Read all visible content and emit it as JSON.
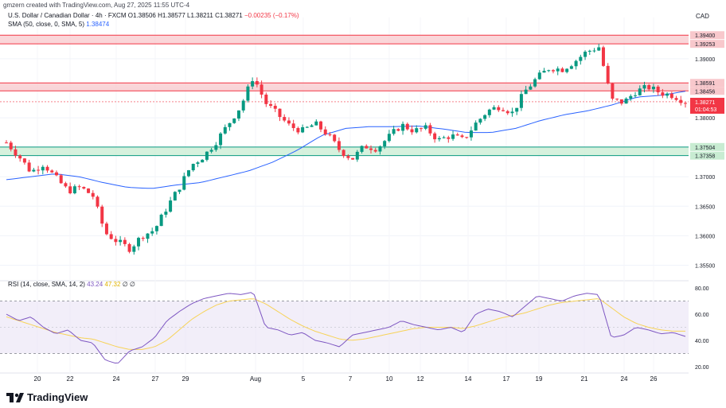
{
  "attribution": "gmzern created with TradingView.com, Aug 27, 2025 11:55 UTC-4",
  "legend": {
    "symbol": "U.S. Dollar / Canadian Dollar · 4h · FXCM",
    "open": "O1.38506",
    "high": "H1.38577",
    "low": "L1.38211",
    "close": "C1.38271",
    "change": "−0.00235 (−0.17%)",
    "sma_label": "SMA (50, close, 0, SMA, 5)",
    "sma_value": "1.38474"
  },
  "rsi_legend": {
    "label": "RSI (14, close, SMA, 14, 2)",
    "rsi_value": "43.24",
    "sma_value": "47.32",
    "extra": "∅ ∅"
  },
  "currency": "CAD",
  "brand": "TradingView",
  "colors": {
    "up": "#089981",
    "down": "#f23645",
    "sma": "#2962ff",
    "rsi": "#7e57c2",
    "rsi_ma": "#f7d358",
    "resistance_zone": "#f8c8cc",
    "support_zone": "#c8ecd2"
  },
  "chart_data": {
    "type": "candlestick",
    "title": "U.S. Dollar / Canadian Dollar · 4h · FXCM",
    "ylim": [
      1.3525,
      1.397
    ],
    "y_ticks": [
      1.355,
      1.36,
      1.365,
      1.37,
      1.375,
      1.38,
      1.385,
      1.39
    ],
    "y_tick_labels": [
      "1.35500",
      "1.36000",
      "1.36500",
      "1.37000",
      "1.37500",
      "1.38000",
      "1.38500",
      "1.39000"
    ],
    "x_labels": [
      "20",
      "22",
      "24",
      "27",
      "29",
      "Aug",
      "5",
      "7",
      "10",
      "12",
      "14",
      "17",
      "19",
      "21",
      "24",
      "26"
    ],
    "zones": [
      {
        "name": "resistance-upper",
        "from": 1.39253,
        "to": 1.394,
        "labels": [
          "1.39400",
          "1.39253"
        ]
      },
      {
        "name": "resistance-lower",
        "from": 1.38456,
        "to": 1.38591,
        "labels": [
          "1.38591",
          "1.38456"
        ]
      },
      {
        "name": "support",
        "from": 1.37358,
        "to": 1.37504,
        "labels": [
          "1.37504",
          "1.37358"
        ]
      }
    ],
    "last_price": {
      "value": 1.38271,
      "label": "1.38271",
      "countdown": "01:04:53"
    },
    "price_path": [
      1.3758,
      1.3735,
      1.3708,
      1.3722,
      1.3698,
      1.3676,
      1.3682,
      1.3668,
      1.3605,
      1.359,
      1.3578,
      1.36,
      1.361,
      1.3648,
      1.3682,
      1.372,
      1.3735,
      1.376,
      1.379,
      1.382,
      1.387,
      1.3825,
      1.3805,
      1.3785,
      1.3778,
      1.379,
      1.3772,
      1.3745,
      1.373,
      1.3752,
      1.3748,
      1.3768,
      1.3788,
      1.3778,
      1.3782,
      1.3762,
      1.377,
      1.3762,
      1.379,
      1.3812,
      1.382,
      1.3808,
      1.3845,
      1.3868,
      1.3885,
      1.3882,
      1.3895,
      1.3912,
      1.392,
      1.383,
      1.3826,
      1.3845,
      1.3852,
      1.3842,
      1.3838,
      1.3827
    ],
    "sma_path": [
      1.3695,
      1.37,
      1.3705,
      1.37,
      1.369,
      1.3682,
      1.368,
      1.3686,
      1.369,
      1.37,
      1.371,
      1.3725,
      1.3745,
      1.377,
      1.3782,
      1.3785,
      1.3785,
      1.3786,
      1.3781,
      1.3775,
      1.3775,
      1.3782,
      1.3795,
      1.3805,
      1.3812,
      1.3822,
      1.3835,
      1.3838,
      1.3845
    ],
    "rsi": {
      "ylim": [
        15,
        85
      ],
      "y_ticks": [
        20,
        40,
        60,
        80
      ],
      "y_tick_labels": [
        "20.00",
        "40.00",
        "60.00",
        "80.00"
      ],
      "band": [
        30,
        70
      ],
      "values": [
        60,
        55,
        58,
        50,
        45,
        48,
        40,
        38,
        25,
        22,
        32,
        35,
        42,
        55,
        62,
        68,
        72,
        74,
        76,
        75,
        77,
        50,
        48,
        44,
        46,
        40,
        38,
        35,
        44,
        46,
        48,
        50,
        55,
        52,
        50,
        48,
        50,
        46,
        60,
        64,
        62,
        58,
        66,
        74,
        72,
        70,
        74,
        76,
        75,
        42,
        44,
        50,
        48,
        45,
        46,
        43
      ],
      "ma_values": [
        58,
        55,
        52,
        49,
        46,
        44,
        42,
        41,
        38,
        35,
        33,
        33,
        35,
        40,
        48,
        56,
        62,
        67,
        70,
        71,
        72,
        68,
        62,
        56,
        51,
        47,
        44,
        41,
        40,
        41,
        43,
        45,
        47,
        49,
        50,
        50,
        50,
        49,
        51,
        54,
        57,
        59,
        61,
        64,
        67,
        69,
        70,
        71,
        72,
        65,
        58,
        53,
        50,
        48,
        47,
        47
      ]
    }
  }
}
